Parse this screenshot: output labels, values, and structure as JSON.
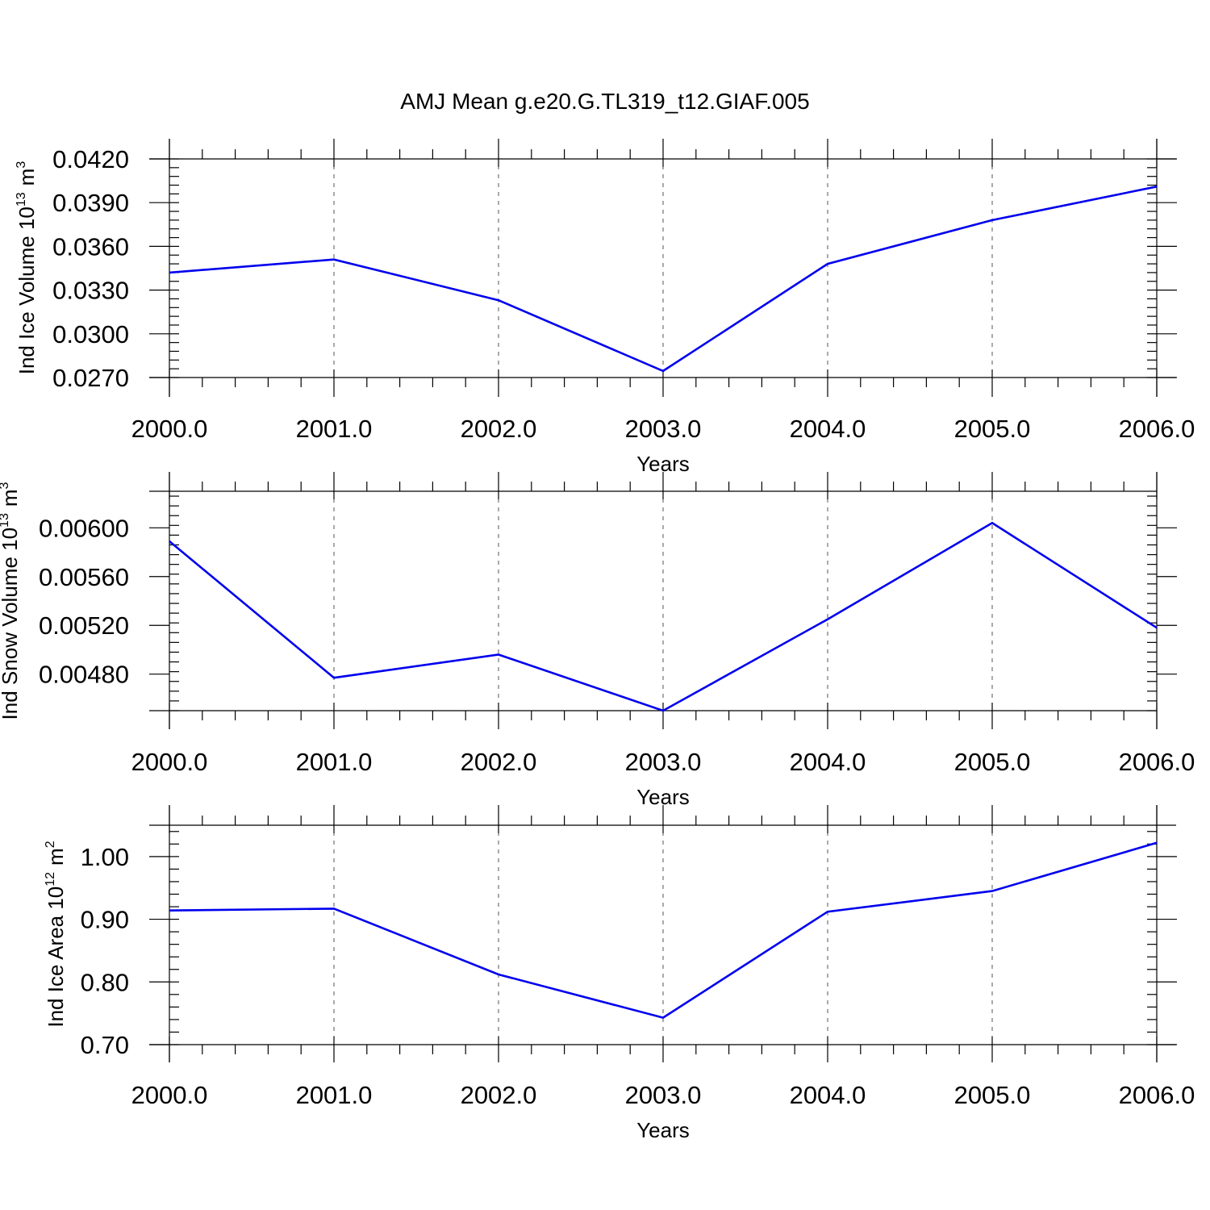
{
  "figure": {
    "title": "AMJ Mean g.e20.G.TL319_t12.GIAF.005"
  },
  "colors": {
    "series": "#0000ee",
    "axis": "#000000",
    "grid": "#555555"
  },
  "chart_data": [
    {
      "type": "line",
      "xlabel": "Years",
      "ylabel": "Ind Ice Volume 10",
      "ylabel_exponent": "13",
      "ylabel_unit": "m",
      "ylabel_unit_exponent": "3",
      "xlim": [
        2000,
        2006
      ],
      "ylim": [
        0.027,
        0.042
      ],
      "x_ticks": [
        "2000.0",
        "2001.0",
        "2002.0",
        "2003.0",
        "2004.0",
        "2005.0",
        "2006.0"
      ],
      "x_tick_values": [
        2000,
        2001,
        2002,
        2003,
        2004,
        2005,
        2006
      ],
      "y_ticks": [
        "0.0270",
        "0.0300",
        "0.0330",
        "0.0360",
        "0.0390",
        "0.0420"
      ],
      "y_tick_values": [
        0.027,
        0.03,
        0.033,
        0.036,
        0.039,
        0.042
      ],
      "x_minor_step": 0.2,
      "y_minor_step": 0.0006,
      "grid": "vertical dashed at major x ticks",
      "x": [
        2000,
        2001,
        2002,
        2003,
        2004,
        2005,
        2006
      ],
      "values": [
        0.0342,
        0.0351,
        0.0323,
        0.02745,
        0.0348,
        0.0378,
        0.0401
      ]
    },
    {
      "type": "line",
      "xlabel": "Years",
      "ylabel": "Ind Snow Volume 10",
      "ylabel_exponent": "13",
      "ylabel_unit": "m",
      "ylabel_unit_exponent": "3",
      "xlim": [
        2000,
        2006
      ],
      "ylim": [
        0.0045,
        0.0063
      ],
      "x_ticks": [
        "2000.0",
        "2001.0",
        "2002.0",
        "2003.0",
        "2004.0",
        "2005.0",
        "2006.0"
      ],
      "x_tick_values": [
        2000,
        2001,
        2002,
        2003,
        2004,
        2005,
        2006
      ],
      "y_ticks": [
        "0.00480",
        "0.00520",
        "0.00560",
        "0.00600"
      ],
      "y_tick_values": [
        0.0048,
        0.0052,
        0.0056,
        0.006
      ],
      "x_minor_step": 0.2,
      "y_minor_step": 8e-05,
      "grid": "vertical dashed at major x ticks",
      "x": [
        2000,
        2001,
        2002,
        2003,
        2004,
        2005,
        2006
      ],
      "values": [
        0.00589,
        0.00477,
        0.00496,
        0.0045,
        0.00525,
        0.00604,
        0.00518
      ]
    },
    {
      "type": "line",
      "xlabel": "Years",
      "ylabel": "Ind Ice Area 10",
      "ylabel_exponent": "12",
      "ylabel_unit": "m",
      "ylabel_unit_exponent": "2",
      "xlim": [
        2000,
        2006
      ],
      "ylim": [
        0.7,
        1.05
      ],
      "x_ticks": [
        "2000.0",
        "2001.0",
        "2002.0",
        "2003.0",
        "2004.0",
        "2005.0",
        "2006.0"
      ],
      "x_tick_values": [
        2000,
        2001,
        2002,
        2003,
        2004,
        2005,
        2006
      ],
      "y_ticks": [
        "0.70",
        "0.80",
        "0.90",
        "1.00"
      ],
      "y_tick_values": [
        0.7,
        0.8,
        0.9,
        1.0
      ],
      "x_minor_step": 0.2,
      "y_minor_step": 0.02,
      "grid": "vertical dashed at major x ticks",
      "x": [
        2000,
        2001,
        2002,
        2003,
        2004,
        2005,
        2006
      ],
      "values": [
        0.914,
        0.917,
        0.812,
        0.743,
        0.912,
        0.945,
        1.022
      ]
    }
  ]
}
